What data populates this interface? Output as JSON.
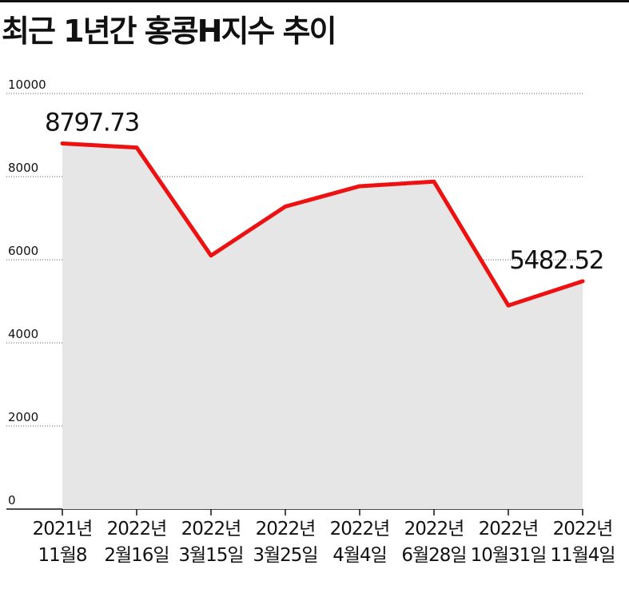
{
  "title": "최근 1년간 홍콩H지수 추이",
  "chart_data": {
    "type": "area",
    "title": "최근 1년간 홍콩H지수 추이",
    "categories": [
      {
        "year": "2021년",
        "date": "11월8"
      },
      {
        "year": "2022년",
        "date": "2월16일"
      },
      {
        "year": "2022년",
        "date": "3월15일"
      },
      {
        "year": "2022년",
        "date": "3월25일"
      },
      {
        "year": "2022년",
        "date": "4월4일"
      },
      {
        "year": "2022년",
        "date": "6월28일"
      },
      {
        "year": "2022년",
        "date": "10월31일"
      },
      {
        "year": "2022년",
        "date": "11월4일"
      }
    ],
    "series": [
      {
        "values": [
          8797.73,
          8700,
          6100,
          7280,
          7770,
          7880,
          4900,
          5482.52
        ]
      }
    ],
    "data_labels": [
      {
        "index": 0,
        "text": "8797.73"
      },
      {
        "index": 7,
        "text": "5482.52"
      }
    ],
    "yticks": [
      0,
      2000,
      4000,
      6000,
      8000,
      10000
    ],
    "ylim": [
      0,
      10000
    ],
    "grid": "horizontal-dotted",
    "colors": {
      "line": "#ee1111",
      "area": "#e6e6e6",
      "grid": "#555555",
      "text": "#111111"
    }
  }
}
